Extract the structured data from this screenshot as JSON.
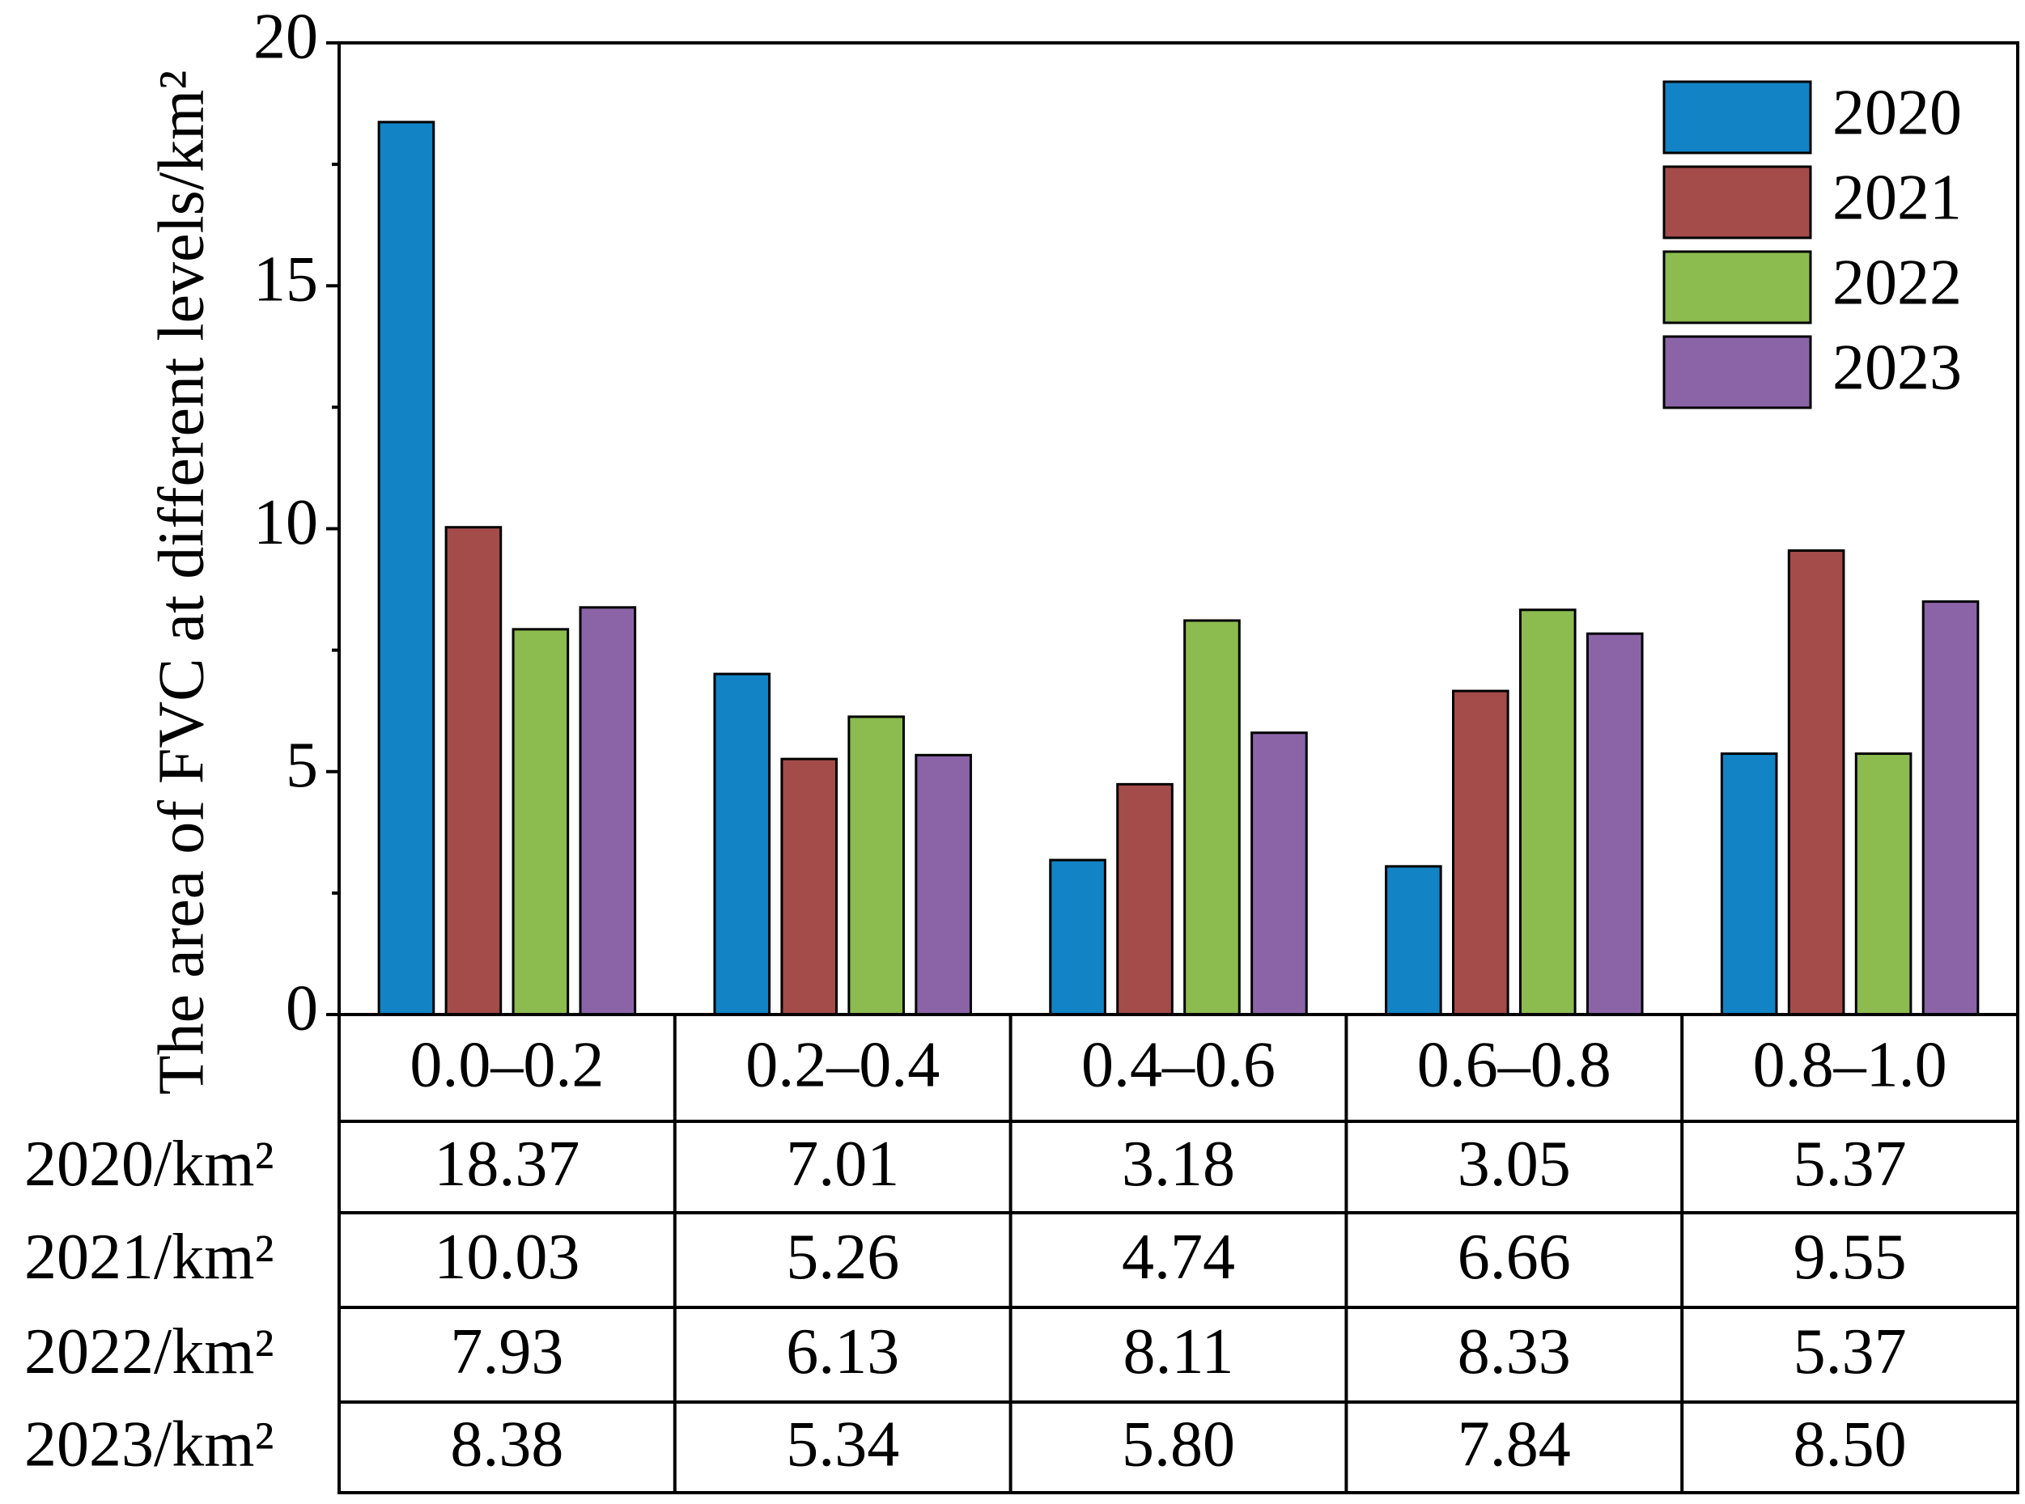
{
  "chart_data": {
    "type": "bar",
    "y_label": "The area of FVC at different levels/km²",
    "categories": [
      "0.0–0.2",
      "0.2–0.4",
      "0.4–0.6",
      "0.6–0.8",
      "0.8–1.0"
    ],
    "series": [
      {
        "name": "2020",
        "row_label": "2020/km²",
        "color": "#1283c4",
        "values": [
          18.37,
          7.01,
          3.18,
          3.05,
          5.37
        ],
        "value_labels": [
          "18.37",
          "7.01",
          "3.18",
          "3.05",
          "5.37"
        ]
      },
      {
        "name": "2021",
        "row_label": "2021/km²",
        "color": "#a34c4a",
        "values": [
          10.03,
          5.26,
          4.74,
          6.66,
          9.55
        ],
        "value_labels": [
          "10.03",
          "5.26",
          "4.74",
          "6.66",
          "9.55"
        ]
      },
      {
        "name": "2022",
        "row_label": "2022/km²",
        "color": "#8cbb4f",
        "values": [
          7.93,
          6.13,
          8.11,
          8.33,
          5.37
        ],
        "value_labels": [
          "7.93",
          "6.13",
          "8.11",
          "8.33",
          "5.37"
        ]
      },
      {
        "name": "2023",
        "row_label": "2023/km²",
        "color": "#8b64a8",
        "values": [
          8.38,
          5.34,
          5.8,
          7.84,
          8.5
        ],
        "value_labels": [
          "8.38",
          "5.34",
          "5.80",
          "7.84",
          "8.50"
        ]
      }
    ],
    "ylim": [
      0,
      20
    ],
    "yticks": [
      0,
      5,
      10,
      15,
      20
    ],
    "yminorticks": [
      2.5,
      7.5,
      12.5,
      17.5
    ],
    "grid": false,
    "legend": "upper right"
  }
}
